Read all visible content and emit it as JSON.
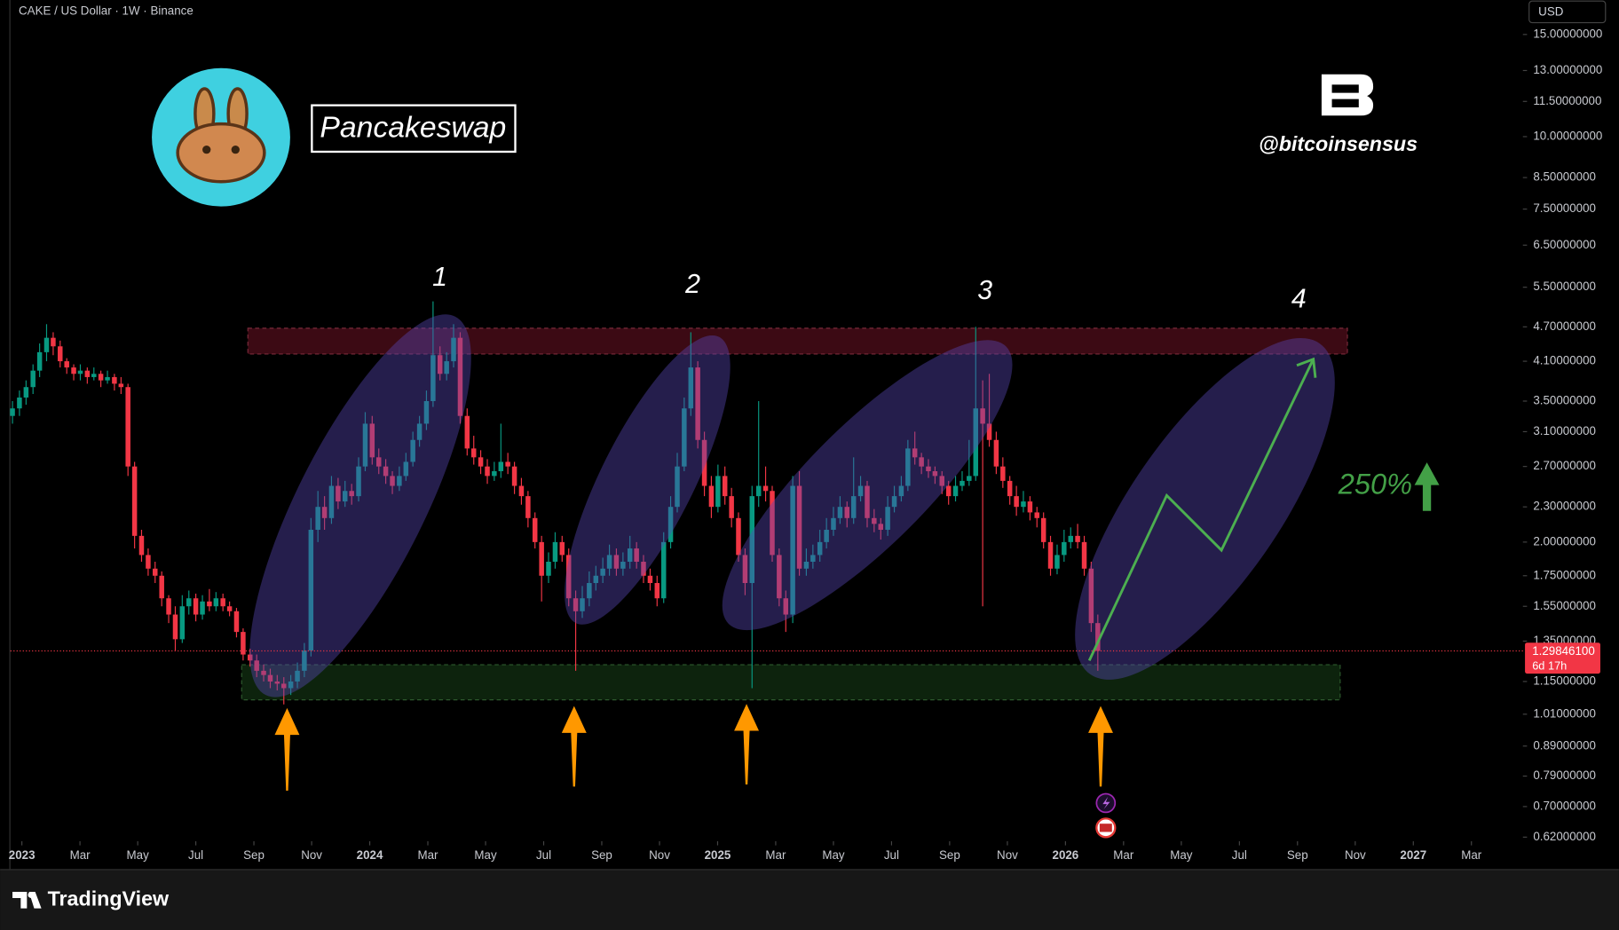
{
  "chart_data": {
    "type": "candlestick",
    "title": "CAKE / US Dollar · 1W · Binance",
    "log_scale": true,
    "currency": "USD",
    "brand": "TradingView",
    "labels": {
      "project": "Pancakeswap",
      "handle": "@bitcoinsensus",
      "waves": [
        "1",
        "2",
        "3",
        "4"
      ],
      "target": "250%"
    },
    "up_color": "#089981",
    "down_color": "#f23645",
    "last_price": {
      "value": 1.298461,
      "label": "1.29846100"
    },
    "countdown": "6d 17h",
    "xlim": [
      2022.967,
      2027.315
    ],
    "ylim": [
      0.61,
      17.2
    ],
    "yticks": [
      {
        "value": 15,
        "label": "15.00000000"
      },
      {
        "value": 13,
        "label": "13.00000000"
      },
      {
        "value": 11.5,
        "label": "11.50000000"
      },
      {
        "value": 10,
        "label": "10.00000000"
      },
      {
        "value": 8.5,
        "label": "8.50000000"
      },
      {
        "value": 7.5,
        "label": "7.50000000"
      },
      {
        "value": 6.5,
        "label": "6.50000000"
      },
      {
        "value": 5.5,
        "label": "5.50000000"
      },
      {
        "value": 4.7,
        "label": "4.70000000"
      },
      {
        "value": 4.1,
        "label": "4.10000000"
      },
      {
        "value": 3.5,
        "label": "3.50000000"
      },
      {
        "value": 3.1,
        "label": "3.10000000"
      },
      {
        "value": 2.7,
        "label": "2.70000000"
      },
      {
        "value": 2.3,
        "label": "2.30000000"
      },
      {
        "value": 2,
        "label": "2.00000000"
      },
      {
        "value": 1.75,
        "label": "1.75000000"
      },
      {
        "value": 1.55,
        "label": "1.55000000"
      },
      {
        "value": 1.35,
        "label": "1.35000000"
      },
      {
        "value": 1.15,
        "label": "1.15000000"
      },
      {
        "value": 1.01,
        "label": "1.01000000"
      },
      {
        "value": 0.89,
        "label": "0.89000000"
      },
      {
        "value": 0.79,
        "label": "0.79000000"
      },
      {
        "value": 0.7,
        "label": "0.70000000"
      },
      {
        "value": 0.62,
        "label": "0.62000000"
      }
    ],
    "xticks": [
      {
        "value": 2023,
        "label": "2023"
      },
      {
        "value": 2023.167,
        "label": "Mar"
      },
      {
        "value": 2023.333,
        "label": "May"
      },
      {
        "value": 2023.5,
        "label": "Jul"
      },
      {
        "value": 2023.667,
        "label": "Sep"
      },
      {
        "value": 2023.833,
        "label": "Nov"
      },
      {
        "value": 2024,
        "label": "2024"
      },
      {
        "value": 2024.167,
        "label": "Mar"
      },
      {
        "value": 2024.333,
        "label": "May"
      },
      {
        "value": 2024.5,
        "label": "Jul"
      },
      {
        "value": 2024.667,
        "label": "Sep"
      },
      {
        "value": 2024.833,
        "label": "Nov"
      },
      {
        "value": 2025,
        "label": "2025"
      },
      {
        "value": 2025.167,
        "label": "Mar"
      },
      {
        "value": 2025.333,
        "label": "May"
      },
      {
        "value": 2025.5,
        "label": "Jul"
      },
      {
        "value": 2025.667,
        "label": "Sep"
      },
      {
        "value": 2025.833,
        "label": "Nov"
      },
      {
        "value": 2026,
        "label": "2026"
      },
      {
        "value": 2026.167,
        "label": "Mar"
      },
      {
        "value": 2026.333,
        "label": "May"
      },
      {
        "value": 2026.5,
        "label": "Jul"
      },
      {
        "value": 2026.667,
        "label": "Sep"
      },
      {
        "value": 2026.833,
        "label": "Nov"
      },
      {
        "value": 2027,
        "label": "2027"
      },
      {
        "value": 2027.167,
        "label": "Mar"
      }
    ],
    "x": [
      2022.973,
      2022.993,
      2023.012,
      2023.032,
      2023.051,
      2023.071,
      2023.09,
      2023.11,
      2023.129,
      2023.149,
      2023.168,
      2023.188,
      2023.207,
      2023.227,
      2023.246,
      2023.266,
      2023.285,
      2023.305,
      2023.324,
      2023.344,
      2023.363,
      2023.383,
      2023.402,
      2023.422,
      2023.441,
      2023.461,
      2023.48,
      2023.5,
      2023.519,
      2023.539,
      2023.558,
      2023.578,
      2023.597,
      2023.617,
      2023.636,
      2023.656,
      2023.675,
      2023.695,
      2023.714,
      2023.734,
      2023.753,
      2023.773,
      2023.792,
      2023.812,
      2023.831,
      2023.851,
      2023.87,
      2023.89,
      2023.909,
      2023.929,
      2023.948,
      2023.968,
      2023.987,
      2024.007,
      2024.026,
      2024.046,
      2024.065,
      2024.085,
      2024.104,
      2024.124,
      2024.143,
      2024.163,
      2024.182,
      2024.202,
      2024.221,
      2024.241,
      2024.26,
      2024.28,
      2024.299,
      2024.319,
      2024.338,
      2024.358,
      2024.377,
      2024.397,
      2024.416,
      2024.436,
      2024.455,
      2024.475,
      2024.494,
      2024.514,
      2024.533,
      2024.553,
      2024.572,
      2024.592,
      2024.611,
      2024.631,
      2024.65,
      2024.67,
      2024.689,
      2024.709,
      2024.728,
      2024.748,
      2024.767,
      2024.787,
      2024.806,
      2024.826,
      2024.845,
      2024.865,
      2024.884,
      2024.904,
      2024.923,
      2024.943,
      2024.962,
      2024.982,
      2025.001,
      2025.021,
      2025.04,
      2025.06,
      2025.079,
      2025.099,
      2025.118,
      2025.138,
      2025.157,
      2025.177,
      2025.196,
      2025.216,
      2025.235,
      2025.255,
      2025.274,
      2025.294,
      2025.313,
      2025.333,
      2025.352,
      2025.372,
      2025.391,
      2025.411,
      2025.43,
      2025.45,
      2025.469,
      2025.489,
      2025.508,
      2025.528,
      2025.547,
      2025.567,
      2025.586,
      2025.606,
      2025.625,
      2025.645,
      2025.664,
      2025.684,
      2025.703,
      2025.723,
      2025.742,
      2025.762,
      2025.781,
      2025.801,
      2025.82,
      2025.84,
      2025.859,
      2025.879,
      2025.898,
      2025.918,
      2025.937,
      2025.957,
      2025.976,
      2025.996,
      2026.015,
      2026.035,
      2026.054,
      2026.074,
      2026.093
    ],
    "ohlc": [
      [
        3.3,
        3.5,
        3.2,
        3.4
      ],
      [
        3.4,
        3.65,
        3.3,
        3.55
      ],
      [
        3.55,
        3.8,
        3.45,
        3.7
      ],
      [
        3.7,
        4.05,
        3.6,
        3.95
      ],
      [
        3.95,
        4.4,
        3.85,
        4.25
      ],
      [
        4.25,
        4.75,
        4.1,
        4.5
      ],
      [
        4.5,
        4.6,
        4.2,
        4.35
      ],
      [
        4.35,
        4.45,
        4.0,
        4.1
      ],
      [
        4.1,
        4.15,
        3.9,
        4.0
      ],
      [
        4.0,
        4.05,
        3.8,
        3.9
      ],
      [
        3.9,
        4.05,
        3.8,
        3.95
      ],
      [
        3.95,
        4.0,
        3.75,
        3.85
      ],
      [
        3.85,
        4.0,
        3.8,
        3.9
      ],
      [
        3.9,
        3.95,
        3.7,
        3.8
      ],
      [
        3.8,
        3.95,
        3.75,
        3.85
      ],
      [
        3.85,
        3.9,
        3.65,
        3.75
      ],
      [
        3.75,
        3.85,
        3.6,
        3.7
      ],
      [
        3.7,
        3.75,
        2.6,
        2.7
      ],
      [
        2.7,
        2.75,
        1.95,
        2.05
      ],
      [
        2.05,
        2.1,
        1.85,
        1.9
      ],
      [
        1.9,
        1.95,
        1.75,
        1.8
      ],
      [
        1.8,
        1.85,
        1.7,
        1.75
      ],
      [
        1.75,
        1.78,
        1.55,
        1.6
      ],
      [
        1.6,
        1.62,
        1.45,
        1.5
      ],
      [
        1.5,
        1.55,
        1.3,
        1.36
      ],
      [
        1.36,
        1.62,
        1.34,
        1.55
      ],
      [
        1.55,
        1.65,
        1.5,
        1.6
      ],
      [
        1.6,
        1.63,
        1.46,
        1.5
      ],
      [
        1.5,
        1.62,
        1.47,
        1.58
      ],
      [
        1.58,
        1.66,
        1.52,
        1.55
      ],
      [
        1.55,
        1.64,
        1.52,
        1.6
      ],
      [
        1.6,
        1.63,
        1.52,
        1.55
      ],
      [
        1.55,
        1.58,
        1.49,
        1.52
      ],
      [
        1.52,
        1.54,
        1.37,
        1.4
      ],
      [
        1.4,
        1.42,
        1.25,
        1.28
      ],
      [
        1.28,
        1.31,
        1.22,
        1.25
      ],
      [
        1.25,
        1.28,
        1.17,
        1.2
      ],
      [
        1.2,
        1.23,
        1.15,
        1.18
      ],
      [
        1.18,
        1.21,
        1.12,
        1.15
      ],
      [
        1.15,
        1.18,
        1.11,
        1.14
      ],
      [
        1.14,
        1.17,
        1.05,
        1.12
      ],
      [
        1.12,
        1.18,
        1.09,
        1.15
      ],
      [
        1.15,
        1.24,
        1.12,
        1.2
      ],
      [
        1.2,
        1.34,
        1.17,
        1.3
      ],
      [
        1.3,
        2.2,
        1.27,
        2.1
      ],
      [
        2.1,
        2.45,
        2.0,
        2.3
      ],
      [
        2.3,
        2.4,
        2.1,
        2.2
      ],
      [
        2.2,
        2.6,
        2.15,
        2.5
      ],
      [
        2.5,
        2.58,
        2.28,
        2.35
      ],
      [
        2.35,
        2.55,
        2.3,
        2.45
      ],
      [
        2.45,
        2.52,
        2.32,
        2.4
      ],
      [
        2.4,
        2.8,
        2.35,
        2.7
      ],
      [
        2.7,
        3.35,
        2.65,
        3.2
      ],
      [
        3.2,
        3.3,
        2.72,
        2.8
      ],
      [
        2.8,
        2.9,
        2.62,
        2.7
      ],
      [
        2.7,
        2.78,
        2.52,
        2.6
      ],
      [
        2.6,
        2.65,
        2.42,
        2.5
      ],
      [
        2.5,
        2.7,
        2.45,
        2.6
      ],
      [
        2.6,
        2.85,
        2.55,
        2.75
      ],
      [
        2.75,
        3.1,
        2.7,
        3.0
      ],
      [
        3.0,
        3.3,
        2.92,
        3.2
      ],
      [
        3.2,
        3.65,
        3.12,
        3.5
      ],
      [
        3.5,
        5.2,
        3.42,
        4.2
      ],
      [
        4.2,
        4.35,
        3.8,
        3.9
      ],
      [
        3.9,
        4.25,
        3.8,
        4.1
      ],
      [
        4.1,
        4.75,
        4.0,
        4.5
      ],
      [
        4.5,
        4.6,
        3.2,
        3.3
      ],
      [
        3.3,
        3.4,
        2.82,
        2.9
      ],
      [
        2.9,
        3.05,
        2.72,
        2.8
      ],
      [
        2.8,
        2.88,
        2.62,
        2.7
      ],
      [
        2.7,
        2.78,
        2.52,
        2.6
      ],
      [
        2.6,
        2.75,
        2.55,
        2.65
      ],
      [
        2.65,
        3.2,
        2.58,
        2.75
      ],
      [
        2.75,
        2.85,
        2.62,
        2.7
      ],
      [
        2.7,
        2.75,
        2.42,
        2.5
      ],
      [
        2.5,
        2.58,
        2.32,
        2.4
      ],
      [
        2.4,
        2.45,
        2.12,
        2.2
      ],
      [
        2.2,
        2.25,
        1.95,
        2.0
      ],
      [
        2.0,
        2.05,
        1.58,
        1.75
      ],
      [
        1.75,
        1.92,
        1.7,
        1.85
      ],
      [
        1.85,
        2.08,
        1.8,
        2.0
      ],
      [
        2.0,
        2.05,
        1.85,
        1.9
      ],
      [
        1.9,
        1.95,
        1.55,
        1.6
      ],
      [
        1.6,
        1.65,
        1.2,
        1.52
      ],
      [
        1.52,
        1.68,
        1.48,
        1.6
      ],
      [
        1.6,
        1.78,
        1.55,
        1.7
      ],
      [
        1.7,
        1.82,
        1.65,
        1.75
      ],
      [
        1.75,
        1.88,
        1.7,
        1.8
      ],
      [
        1.8,
        1.98,
        1.75,
        1.9
      ],
      [
        1.9,
        1.95,
        1.75,
        1.8
      ],
      [
        1.8,
        1.92,
        1.75,
        1.85
      ],
      [
        1.85,
        2.05,
        1.8,
        1.95
      ],
      [
        1.95,
        2.0,
        1.8,
        1.85
      ],
      [
        1.85,
        1.9,
        1.7,
        1.75
      ],
      [
        1.75,
        1.8,
        1.65,
        1.7
      ],
      [
        1.7,
        1.75,
        1.55,
        1.6
      ],
      [
        1.6,
        2.08,
        1.57,
        2.0
      ],
      [
        2.0,
        2.4,
        1.95,
        2.3
      ],
      [
        2.3,
        2.85,
        2.25,
        2.7
      ],
      [
        2.7,
        3.55,
        2.65,
        3.4
      ],
      [
        3.4,
        4.6,
        3.3,
        4.0
      ],
      [
        4.0,
        4.1,
        2.9,
        3.0
      ],
      [
        3.0,
        3.1,
        2.4,
        2.5
      ],
      [
        2.5,
        2.6,
        2.2,
        2.3
      ],
      [
        2.3,
        2.72,
        2.25,
        2.6
      ],
      [
        2.6,
        2.7,
        2.32,
        2.4
      ],
      [
        2.4,
        2.48,
        2.12,
        2.2
      ],
      [
        2.2,
        2.25,
        1.85,
        1.9
      ],
      [
        1.9,
        1.95,
        1.62,
        1.7
      ],
      [
        1.7,
        2.5,
        1.12,
        2.4
      ],
      [
        2.4,
        3.5,
        2.3,
        2.5
      ],
      [
        2.5,
        2.7,
        2.35,
        2.45
      ],
      [
        2.45,
        2.5,
        1.85,
        1.9
      ],
      [
        1.9,
        1.95,
        1.55,
        1.6
      ],
      [
        1.6,
        1.65,
        1.4,
        1.5
      ],
      [
        1.5,
        2.6,
        1.45,
        2.5
      ],
      [
        2.5,
        2.65,
        1.75,
        1.8
      ],
      [
        1.8,
        1.95,
        1.75,
        1.85
      ],
      [
        1.85,
        1.98,
        1.8,
        1.9
      ],
      [
        1.9,
        2.1,
        1.85,
        2.0
      ],
      [
        2.0,
        2.2,
        1.95,
        2.1
      ],
      [
        2.1,
        2.3,
        2.05,
        2.2
      ],
      [
        2.2,
        2.4,
        2.15,
        2.3
      ],
      [
        2.3,
        2.35,
        2.12,
        2.2
      ],
      [
        2.2,
        2.8,
        2.15,
        2.4
      ],
      [
        2.4,
        2.6,
        2.35,
        2.5
      ],
      [
        2.5,
        2.55,
        2.12,
        2.2
      ],
      [
        2.2,
        2.28,
        2.08,
        2.15
      ],
      [
        2.15,
        2.2,
        2.02,
        2.1
      ],
      [
        2.1,
        2.4,
        2.05,
        2.3
      ],
      [
        2.3,
        2.5,
        2.25,
        2.4
      ],
      [
        2.4,
        2.6,
        2.35,
        2.5
      ],
      [
        2.5,
        3.0,
        2.45,
        2.9
      ],
      [
        2.9,
        3.1,
        2.72,
        2.8
      ],
      [
        2.8,
        2.85,
        2.62,
        2.7
      ],
      [
        2.7,
        2.78,
        2.58,
        2.65
      ],
      [
        2.65,
        2.7,
        2.52,
        2.6
      ],
      [
        2.6,
        2.65,
        2.42,
        2.5
      ],
      [
        2.5,
        2.55,
        2.32,
        2.4
      ],
      [
        2.4,
        2.6,
        2.35,
        2.5
      ],
      [
        2.5,
        2.65,
        2.45,
        2.55
      ],
      [
        2.55,
        3.0,
        2.5,
        2.6
      ],
      [
        2.6,
        4.7,
        2.55,
        3.4
      ],
      [
        3.4,
        3.8,
        1.55,
        3.2
      ],
      [
        3.2,
        3.9,
        2.92,
        3.0
      ],
      [
        3.0,
        3.1,
        2.62,
        2.7
      ],
      [
        2.7,
        2.8,
        2.48,
        2.55
      ],
      [
        2.55,
        2.6,
        2.32,
        2.4
      ],
      [
        2.4,
        2.5,
        2.22,
        2.3
      ],
      [
        2.3,
        2.45,
        2.25,
        2.35
      ],
      [
        2.35,
        2.4,
        2.18,
        2.25
      ],
      [
        2.25,
        2.3,
        2.12,
        2.2
      ],
      [
        2.2,
        2.25,
        1.95,
        2.0
      ],
      [
        2.0,
        2.05,
        1.75,
        1.8
      ],
      [
        1.8,
        1.98,
        1.76,
        1.9
      ],
      [
        1.9,
        2.1,
        1.85,
        2.0
      ],
      [
        2.0,
        2.12,
        1.95,
        2.05
      ],
      [
        2.05,
        2.15,
        1.95,
        2.0
      ],
      [
        2.0,
        2.05,
        1.75,
        1.8
      ],
      [
        1.8,
        1.85,
        1.4,
        1.45
      ],
      [
        1.45,
        1.5,
        1.2,
        1.298461
      ]
    ]
  }
}
